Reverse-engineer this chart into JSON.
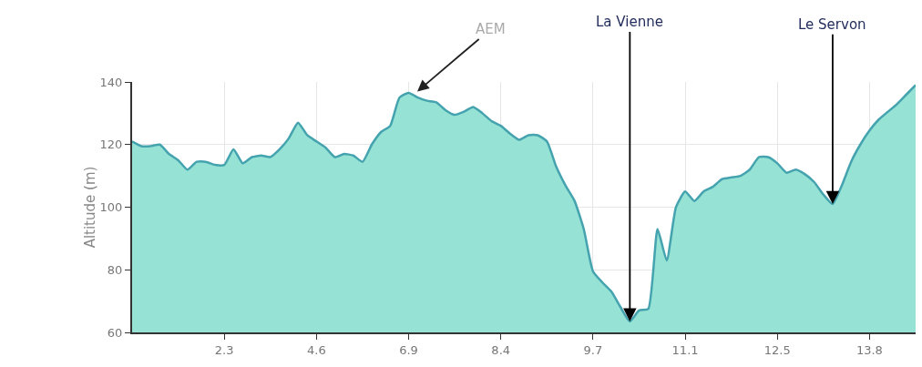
{
  "chart_data": {
    "type": "area",
    "ylabel": "Altitude (m)",
    "categories": [
      null,
      null,
      null,
      null,
      null,
      null,
      null,
      null,
      null,
      null,
      "2.3",
      null,
      null,
      null,
      null,
      null,
      null,
      null,
      null,
      null,
      "4.6",
      null,
      null,
      null,
      null,
      null,
      null,
      null,
      null,
      null,
      "6.9",
      null,
      null,
      null,
      null,
      null,
      null,
      null,
      null,
      null,
      "8.4",
      null,
      null,
      null,
      null,
      null,
      null,
      null,
      null,
      null,
      "9.7",
      null,
      null,
      null,
      null,
      null,
      null,
      null,
      null,
      null,
      "11.1",
      null,
      null,
      null,
      null,
      null,
      null,
      null,
      null,
      null,
      "12.5",
      null,
      null,
      null,
      null,
      null,
      null,
      null,
      null,
      null,
      "13.8",
      null,
      null,
      null,
      null,
      null
    ],
    "series": [
      {
        "color": "#96e2d4",
        "values": [
          121,
          119.5,
          119.5,
          120,
          117,
          115,
          112,
          114.5,
          114.5,
          113.5,
          113.5,
          118.5,
          114,
          116,
          116.5,
          116,
          118.5,
          122,
          127,
          123,
          121,
          119,
          116,
          117,
          116.5,
          114.5,
          120,
          124,
          126,
          135,
          136.5,
          135,
          134,
          133.5,
          131,
          129.5,
          130.5,
          132,
          130,
          127.5,
          126,
          123.5,
          121.5,
          123,
          123,
          121,
          113,
          107,
          102,
          93,
          79.5,
          76,
          73,
          68,
          63.5,
          67,
          67.5,
          93,
          83,
          100,
          105,
          102,
          105,
          106.5,
          109,
          109.5,
          110,
          112,
          116,
          116,
          114,
          111,
          112,
          110.5,
          108,
          104,
          101,
          107,
          114.5,
          120,
          124.5,
          128,
          130.5,
          133,
          136,
          139
        ]
      }
    ],
    "ylim": [
      60,
      140
    ],
    "yticks": [
      60,
      80,
      100,
      120,
      140
    ],
    "grid": true,
    "annotations": [
      "AEM",
      {
        "text": "La Vienne",
        "y": 63.5
      },
      {
        "text": "Le Servon",
        "y": 101
      }
    ]
  }
}
